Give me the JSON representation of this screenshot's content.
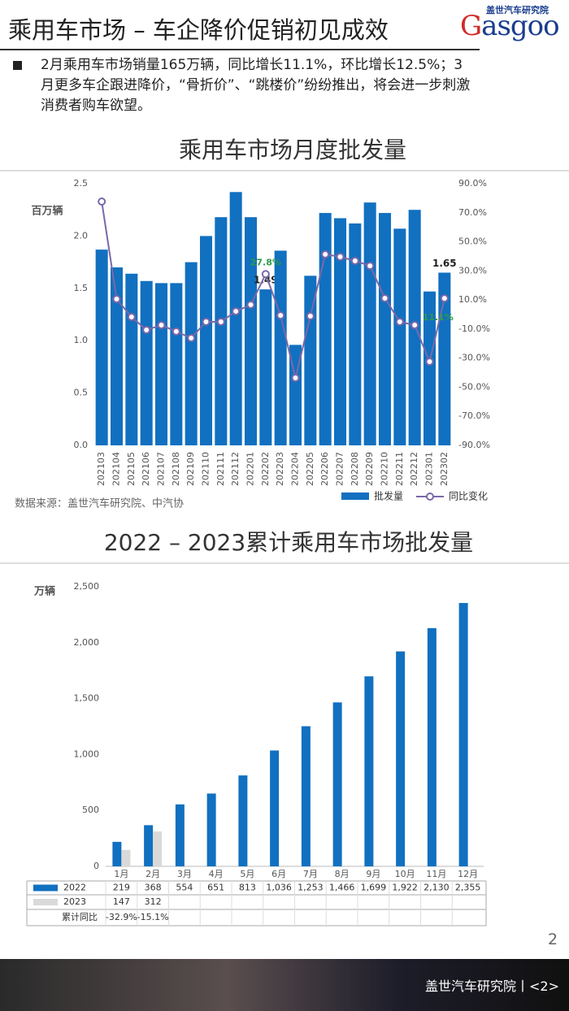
{
  "header": {
    "title": "乘用车市场 – 车企降价促销初见成效",
    "logo_text": "Gasgoo",
    "logo_subtitle": "盖世汽车研究院"
  },
  "bullet": "2月乘用车市场销量165万辆，同比增长11.1%，环比增长12.5%；3月更多车企跟进降价，“骨折价”、“跳楼价”纷纷推出，将会进一步刺激消费者购车欲望。",
  "chart_data": [
    {
      "type": "bar-line",
      "title": "乘用车市场月度批发量",
      "y_label": "百万辆",
      "categories": [
        "202103",
        "202104",
        "202105",
        "202106",
        "202107",
        "202108",
        "202109",
        "202110",
        "202111",
        "202112",
        "202201",
        "202202",
        "202203",
        "202204",
        "202205",
        "202206",
        "202207",
        "202208",
        "202209",
        "202210",
        "202211",
        "202212",
        "202301",
        "202302"
      ],
      "series": [
        {
          "name": "批发量",
          "type": "bar",
          "color": "#1170c0",
          "values": [
            1.87,
            1.7,
            1.64,
            1.57,
            1.55,
            1.55,
            1.75,
            2.0,
            2.18,
            2.42,
            2.18,
            1.49,
            1.86,
            0.96,
            1.62,
            2.22,
            2.17,
            2.12,
            2.32,
            2.22,
            2.07,
            2.25,
            1.47,
            1.65
          ],
          "value_labels": [
            null,
            null,
            null,
            null,
            null,
            null,
            null,
            null,
            null,
            null,
            null,
            "1.49",
            null,
            null,
            null,
            null,
            null,
            null,
            null,
            null,
            null,
            null,
            null,
            "1.65"
          ]
        },
        {
          "name": "同比变化",
          "type": "line",
          "axis": "y2",
          "color": "#7b68a8",
          "values": [
            77.7,
            10.6,
            -1.7,
            -10.6,
            -7.3,
            -11.7,
            -16.2,
            -5.0,
            -5.0,
            2.2,
            6.7,
            27.8,
            -0.6,
            -43.6,
            -1.1,
            41.4,
            39.7,
            36.9,
            33.5,
            11.2,
            -5.0,
            -7.3,
            -32.4,
            11.1
          ],
          "value_labels": [
            null,
            null,
            null,
            null,
            null,
            null,
            null,
            null,
            null,
            null,
            null,
            "27.8%",
            null,
            null,
            null,
            null,
            null,
            null,
            null,
            null,
            null,
            null,
            null,
            "11.1%"
          ],
          "label_color": "#2e9a4a"
        }
      ],
      "ylim": [
        0,
        2.5
      ],
      "yticks": [
        {
          "value": 0,
          "label": "0.0"
        },
        0.5,
        {
          "value": 1,
          "label": "1.0"
        },
        1.5,
        {
          "value": 2,
          "label": "2.0"
        },
        2.5
      ],
      "y2lim": [
        -90,
        90
      ],
      "y2ticks": [
        {
          "value": -90,
          "label": "-90.0%"
        },
        {
          "value": -70,
          "label": "-70.0%"
        },
        {
          "value": -50,
          "label": "-50.0%"
        },
        {
          "value": -30,
          "label": "-30.0%"
        },
        {
          "value": -10,
          "label": "-10.0%"
        },
        {
          "value": 10,
          "label": "10.0%"
        },
        {
          "value": 30,
          "label": "30.0%"
        },
        {
          "value": 50,
          "label": "50.0%"
        },
        {
          "value": 70,
          "label": "70.0%"
        },
        {
          "value": 90,
          "label": "90.0%"
        }
      ],
      "grid": false,
      "legend": "bottom-right",
      "source": "数据来源：盖世汽车研究院、中汽协"
    },
    {
      "type": "bar",
      "title": "2022 – 2023累计乘用车市场批发量",
      "y_label": "万辆",
      "categories": [
        "1月",
        "2月",
        "3月",
        "4月",
        "5月",
        "6月",
        "7月",
        "8月",
        "9月",
        "10月",
        "11月",
        "12月"
      ],
      "series": [
        {
          "name": "2022",
          "color": "#1170c0",
          "values": [
            219,
            368,
            554,
            651,
            813,
            1036,
            1253,
            1466,
            1699,
            1922,
            2130,
            2355
          ],
          "value_labels": [
            "219",
            "368",
            "554",
            "651",
            "813",
            "1,036",
            "1,253",
            "1,466",
            "1,699",
            "1,922",
            "2,130",
            "2,355"
          ]
        },
        {
          "name": "2023",
          "color": "#d9d9d9",
          "values": [
            147,
            312,
            null,
            null,
            null,
            null,
            null,
            null,
            null,
            null,
            null,
            null
          ]
        }
      ],
      "cumulative_yoy": {
        "name": "累计同比",
        "values": [
          -32.9,
          -15.1
        ],
        "value_labels": [
          "-32.9%",
          "-15.1%"
        ]
      },
      "ylim": [
        0,
        2500
      ],
      "yticks": [
        0,
        500,
        {
          "value": 1000,
          "label": "1,000"
        },
        {
          "value": 1500,
          "label": "1,500"
        },
        {
          "value": 2000,
          "label": "2,000"
        },
        {
          "value": 2500,
          "label": "2,500"
        }
      ],
      "grid": false,
      "data_table": true
    }
  ],
  "page_number": "2",
  "footer": "盖世汽车研究院丨<2>"
}
